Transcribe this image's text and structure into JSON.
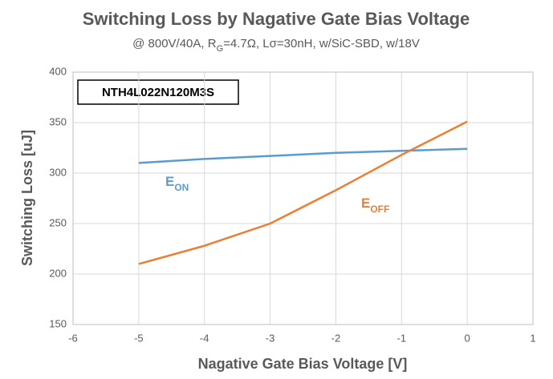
{
  "chart_data": {
    "type": "line",
    "title": "Switching Loss by Nagative Gate Bias Voltage",
    "subtitle": [
      "@ 800V/40A, R",
      "G",
      "=4.7Ω, Lσ=30nH, w/SiC-SBD, w/18V"
    ],
    "x_label": "Nagative Gate Bias Voltage [V]",
    "y_label": "Switching Loss [uJ]",
    "annotation": "NTH4L022N120M3S",
    "x": [
      -5,
      -4,
      -3,
      -2,
      -1,
      0
    ],
    "series": [
      {
        "name": "E",
        "name_sub": "ON",
        "color": "#5b9bd5",
        "values": [
          310,
          314,
          317,
          320,
          322,
          324
        ]
      },
      {
        "name": "E",
        "name_sub": "OFF",
        "color": "#ed7d31",
        "values": [
          210,
          228,
          250,
          283,
          318,
          351
        ]
      }
    ],
    "xlim": [
      -6,
      1
    ],
    "xticks": [
      -6,
      -5,
      -4,
      -3,
      -2,
      -1,
      0,
      1
    ],
    "ylim": [
      150,
      400
    ],
    "yticks": [
      150,
      200,
      250,
      300,
      350,
      400
    ],
    "grid": true
  }
}
